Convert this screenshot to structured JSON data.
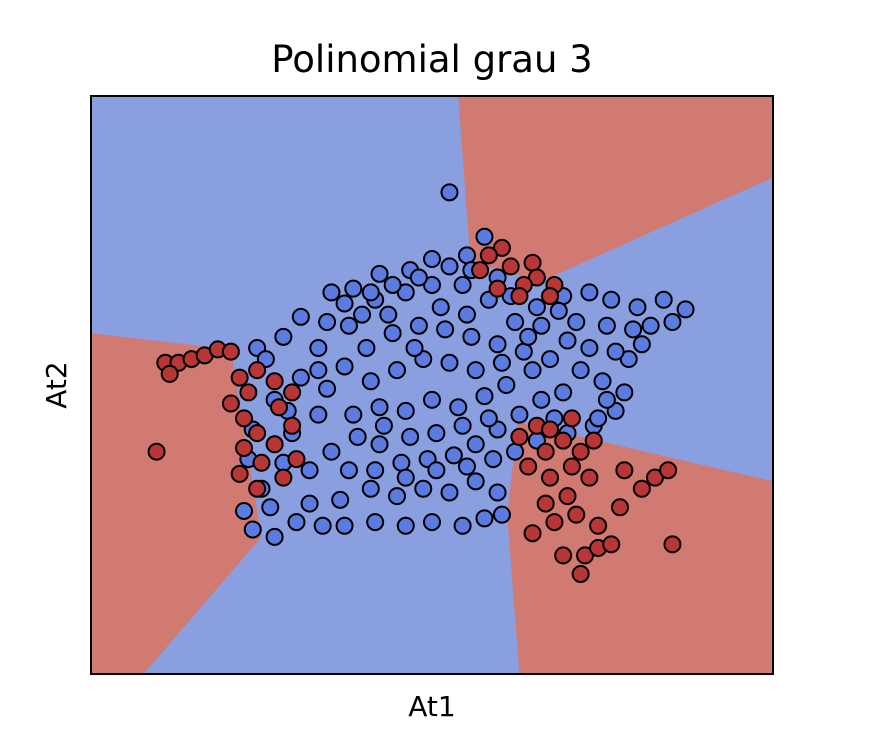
{
  "chart_data": {
    "type": "scatter",
    "title": "Polinomial grau 3",
    "xlabel": "At1",
    "ylabel": "At2",
    "xlim": [
      -4.2,
      3.6
    ],
    "ylim": [
      -4.2,
      3.6
    ],
    "xticks": [],
    "yticks": [],
    "grid": false,
    "legend": false,
    "colors": {
      "region_class_0": "#8a9fe0",
      "region_class_1": "#d07a72",
      "points_class_0": "#5b7be0",
      "points_class_1": "#b83636",
      "marker_edge": "#000000"
    },
    "decision_regions": [
      {
        "class": 1,
        "polygon": [
          [
            0.0,
            3.6
          ],
          [
            3.6,
            3.6
          ],
          [
            3.6,
            2.5
          ],
          [
            0.95,
            1.1
          ],
          [
            0.33,
            1.3
          ],
          [
            0.15,
            1.2
          ]
        ]
      },
      {
        "class": 1,
        "polygon": [
          [
            -4.2,
            0.4
          ],
          [
            -2.6,
            0.18
          ],
          [
            -2.25,
            -2.35
          ],
          [
            -3.6,
            -4.2
          ],
          [
            -4.2,
            -4.2
          ]
        ]
      },
      {
        "class": 1,
        "polygon": [
          [
            0.68,
            -0.8
          ],
          [
            3.6,
            -1.6
          ],
          [
            3.6,
            -4.2
          ],
          [
            0.7,
            -4.2
          ],
          [
            0.56,
            -2.05
          ]
        ]
      }
    ],
    "series": [
      {
        "class": 0,
        "points": [
          [
            -0.1,
            2.3
          ],
          [
            0.3,
            1.7
          ],
          [
            0.1,
            1.45
          ],
          [
            -0.3,
            1.4
          ],
          [
            -0.55,
            1.25
          ],
          [
            -0.9,
            1.2
          ],
          [
            -1.2,
            1.0
          ],
          [
            -1.45,
            0.95
          ],
          [
            -1.8,
            0.62
          ],
          [
            -2.0,
            0.35
          ],
          [
            -2.3,
            0.2
          ],
          [
            2.35,
            0.85
          ],
          [
            2.6,
            0.72
          ],
          [
            2.45,
            0.55
          ],
          [
            2.2,
            0.5
          ],
          [
            2.05,
            0.75
          ],
          [
            1.75,
            0.85
          ],
          [
            1.5,
            0.95
          ],
          [
            1.2,
            0.9
          ],
          [
            2.1,
            0.25
          ],
          [
            1.95,
            0.05
          ],
          [
            1.65,
            -0.25
          ],
          [
            1.9,
            -0.4
          ],
          [
            1.8,
            -0.65
          ],
          [
            1.55,
            -0.85
          ],
          [
            1.25,
            -0.95
          ],
          [
            1.6,
            -0.75
          ],
          [
            -2.45,
            -2.0
          ],
          [
            -2.35,
            -2.25
          ],
          [
            -2.1,
            -2.35
          ],
          [
            -1.85,
            -2.15
          ],
          [
            -1.55,
            -2.2
          ],
          [
            -1.3,
            -2.2
          ],
          [
            -0.95,
            -2.15
          ],
          [
            -0.6,
            -2.2
          ],
          [
            -0.3,
            -2.15
          ],
          [
            0.05,
            -2.2
          ],
          [
            0.3,
            -2.1
          ],
          [
            0.5,
            -2.05
          ],
          [
            0.45,
            -1.75
          ],
          [
            0.2,
            -1.6
          ],
          [
            -0.1,
            -1.75
          ],
          [
            -0.4,
            -1.7
          ],
          [
            -0.7,
            -1.8
          ],
          [
            -1.0,
            -1.7
          ],
          [
            -1.35,
            -1.85
          ],
          [
            -1.7,
            -1.9
          ],
          [
            -2.25,
            -1.7
          ],
          [
            -2.4,
            -1.3
          ],
          [
            -2.35,
            -0.9
          ],
          [
            -2.1,
            -0.5
          ],
          [
            -1.8,
            -0.2
          ],
          [
            -1.6,
            0.2
          ],
          [
            -1.25,
            0.5
          ],
          [
            -0.95,
            0.85
          ],
          [
            -0.6,
            0.95
          ],
          [
            -0.3,
            1.05
          ],
          [
            0.05,
            1.05
          ],
          [
            0.35,
            0.85
          ],
          [
            0.65,
            0.55
          ],
          [
            0.95,
            0.5
          ],
          [
            1.25,
            0.3
          ],
          [
            1.5,
            0.2
          ],
          [
            1.4,
            -0.1
          ],
          [
            1.2,
            -0.4
          ],
          [
            0.95,
            -0.5
          ],
          [
            0.7,
            -0.7
          ],
          [
            0.45,
            -0.9
          ],
          [
            0.2,
            -1.1
          ],
          [
            -0.05,
            -1.25
          ],
          [
            -0.35,
            -1.3
          ],
          [
            -0.65,
            -1.35
          ],
          [
            -0.9,
            -1.1
          ],
          [
            -1.15,
            -1.0
          ],
          [
            -1.45,
            -1.2
          ],
          [
            -1.2,
            -0.7
          ],
          [
            -0.9,
            -0.6
          ],
          [
            -0.6,
            -0.65
          ],
          [
            -0.3,
            -0.5
          ],
          [
            0.0,
            -0.6
          ],
          [
            0.3,
            -0.45
          ],
          [
            0.55,
            -0.3
          ],
          [
            0.85,
            -0.1
          ],
          [
            1.05,
            0.05
          ],
          [
            0.75,
            0.15
          ],
          [
            0.45,
            0.25
          ],
          [
            0.15,
            0.35
          ],
          [
            -0.15,
            0.45
          ],
          [
            -0.45,
            0.5
          ],
          [
            -0.75,
            0.4
          ],
          [
            -1.05,
            0.2
          ],
          [
            -1.3,
            -0.05
          ],
          [
            -1.5,
            -0.35
          ],
          [
            -1.0,
            -0.25
          ],
          [
            -0.7,
            -0.1
          ],
          [
            -0.4,
            0.05
          ],
          [
            -0.1,
            0.0
          ],
          [
            0.2,
            -0.1
          ],
          [
            0.5,
            0.0
          ],
          [
            0.8,
            0.35
          ],
          [
            -0.2,
            0.75
          ],
          [
            -0.5,
            0.2
          ],
          [
            0.1,
            0.65
          ],
          [
            -0.8,
            0.65
          ],
          [
            -1.1,
            0.65
          ],
          [
            0.6,
            0.9
          ],
          [
            0.9,
            0.75
          ],
          [
            1.15,
            0.7
          ],
          [
            -1.6,
            -0.7
          ],
          [
            -1.9,
            -0.95
          ],
          [
            -1.7,
            -1.45
          ],
          [
            -0.25,
            -0.95
          ],
          [
            0.05,
            -0.85
          ],
          [
            0.35,
            -0.75
          ],
          [
            -0.55,
            -1.0
          ],
          [
            -0.85,
            -0.85
          ],
          [
            -1.25,
            -1.45
          ],
          [
            -0.95,
            -1.45
          ],
          [
            -0.6,
            -1.55
          ],
          [
            -0.25,
            -1.45
          ],
          [
            0.1,
            -1.4
          ],
          [
            0.4,
            -1.3
          ],
          [
            0.65,
            -1.2
          ],
          [
            0.9,
            -1.05
          ],
          [
            1.1,
            -0.75
          ],
          [
            -2.0,
            -1.35
          ],
          [
            -2.15,
            -1.95
          ],
          [
            -1.95,
            -0.65
          ],
          [
            -2.2,
            0.05
          ],
          [
            -1.5,
            0.55
          ],
          [
            1.35,
            0.55
          ],
          [
            1.7,
            0.5
          ],
          [
            2.0,
            0.45
          ],
          [
            1.8,
            0.15
          ],
          [
            1.7,
            -0.5
          ],
          [
            0.15,
            1.25
          ],
          [
            -0.1,
            1.3
          ],
          [
            -0.45,
            1.15
          ],
          [
            -0.75,
            1.05
          ],
          [
            -1.0,
            0.95
          ],
          [
            -1.3,
            0.8
          ],
          [
            0.45,
            1.15
          ],
          [
            -1.6,
            -0.1
          ]
        ]
      },
      {
        "class": 1,
        "points": [
          [
            0.5,
            1.55
          ],
          [
            0.85,
            1.35
          ],
          [
            0.35,
            1.45
          ],
          [
            0.6,
            1.3
          ],
          [
            0.9,
            1.15
          ],
          [
            0.25,
            1.25
          ],
          [
            0.75,
            1.05
          ],
          [
            1.1,
            1.05
          ],
          [
            1.05,
            0.9
          ],
          [
            0.7,
            0.9
          ],
          [
            0.45,
            1.0
          ],
          [
            -3.35,
            0.0
          ],
          [
            -3.2,
            0.0
          ],
          [
            -3.05,
            0.05
          ],
          [
            -2.9,
            0.1
          ],
          [
            -2.75,
            0.18
          ],
          [
            -2.6,
            0.15
          ],
          [
            -2.5,
            -0.2
          ],
          [
            -2.4,
            -0.4
          ],
          [
            -2.6,
            -0.55
          ],
          [
            -2.45,
            -0.75
          ],
          [
            -2.3,
            -0.95
          ],
          [
            -2.45,
            -1.15
          ],
          [
            -2.25,
            -1.35
          ],
          [
            -2.5,
            -1.5
          ],
          [
            -2.3,
            -1.7
          ],
          [
            -2.0,
            -1.55
          ],
          [
            -1.85,
            -1.3
          ],
          [
            -2.1,
            -1.1
          ],
          [
            -1.9,
            -0.85
          ],
          [
            -2.05,
            -0.6
          ],
          [
            -1.9,
            -0.4
          ],
          [
            -2.1,
            -0.25
          ],
          [
            -2.3,
            -0.1
          ],
          [
            -3.45,
            -1.2
          ],
          [
            -3.3,
            -0.15
          ],
          [
            0.7,
            -1.0
          ],
          [
            0.9,
            -0.85
          ],
          [
            1.05,
            -0.9
          ],
          [
            1.2,
            -1.05
          ],
          [
            1.4,
            -1.2
          ],
          [
            1.55,
            -1.05
          ],
          [
            1.3,
            -0.75
          ],
          [
            1.0,
            -1.2
          ],
          [
            0.8,
            -1.4
          ],
          [
            1.05,
            -1.55
          ],
          [
            1.3,
            -1.4
          ],
          [
            1.5,
            -1.55
          ],
          [
            1.25,
            -1.8
          ],
          [
            1.0,
            -1.9
          ],
          [
            0.85,
            -2.3
          ],
          [
            1.1,
            -2.15
          ],
          [
            1.35,
            -2.05
          ],
          [
            1.45,
            -2.6
          ],
          [
            1.6,
            -2.5
          ],
          [
            1.75,
            -2.45
          ],
          [
            1.6,
            -2.2
          ],
          [
            1.85,
            -1.95
          ],
          [
            2.1,
            -1.7
          ],
          [
            1.9,
            -1.45
          ],
          [
            2.25,
            -1.55
          ],
          [
            2.4,
            -1.45
          ],
          [
            2.45,
            -2.45
          ],
          [
            1.2,
            -2.6
          ],
          [
            1.4,
            -2.85
          ]
        ]
      }
    ]
  }
}
